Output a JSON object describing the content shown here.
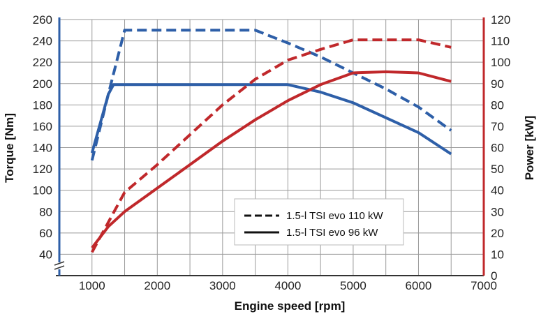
{
  "chart_data": {
    "type": "line",
    "xlabel": "Engine speed [rpm]",
    "ylabel_left": "Torque [Nm]",
    "ylabel_right": "Power [kW]",
    "x_ticks": [
      1000,
      2000,
      3000,
      4000,
      5000,
      6000,
      7000
    ],
    "xlim": [
      500,
      7000
    ],
    "y_left_ticks": [
      40,
      60,
      80,
      100,
      120,
      140,
      160,
      180,
      200,
      220,
      240,
      260
    ],
    "y_left_lim": [
      20,
      260
    ],
    "y_right_ticks": [
      0,
      10,
      20,
      30,
      40,
      50,
      60,
      70,
      80,
      90,
      100,
      110,
      120
    ],
    "y_right_lim": [
      0,
      120
    ],
    "grid": true,
    "left_axis_break": true,
    "colors": {
      "torque": "#2e5fa8",
      "power": "#c0282b",
      "grid": "#9a9a9a"
    },
    "legend": {
      "placement": "bottom-center",
      "entries": [
        {
          "label": "1.5-l TSI evo 110 kW",
          "style": "dashed"
        },
        {
          "label": "1.5-l TSI evo 96 kW",
          "style": "solid"
        }
      ]
    },
    "series": [
      {
        "quantity": "torque",
        "variant": "110 kW",
        "style": "dashed",
        "axis": "left",
        "points": [
          [
            1000,
            128
          ],
          [
            1250,
            190
          ],
          [
            1500,
            250
          ],
          [
            2000,
            250
          ],
          [
            3000,
            250
          ],
          [
            3500,
            250
          ],
          [
            4000,
            238
          ],
          [
            4500,
            225
          ],
          [
            5000,
            210
          ],
          [
            5500,
            195
          ],
          [
            6000,
            178
          ],
          [
            6500,
            156
          ]
        ]
      },
      {
        "quantity": "torque",
        "variant": "96 kW",
        "style": "solid",
        "axis": "left",
        "points": [
          [
            1000,
            135
          ],
          [
            1250,
            190
          ],
          [
            1330,
            199
          ],
          [
            2000,
            199
          ],
          [
            3000,
            199
          ],
          [
            4000,
            199
          ],
          [
            4500,
            192
          ],
          [
            5000,
            182
          ],
          [
            5500,
            168
          ],
          [
            6000,
            154
          ],
          [
            6500,
            134
          ]
        ]
      },
      {
        "quantity": "power",
        "variant": "110 kW",
        "style": "dashed",
        "axis": "right",
        "points": [
          [
            1000,
            11
          ],
          [
            1250,
            25
          ],
          [
            1500,
            39
          ],
          [
            2000,
            52
          ],
          [
            2500,
            66
          ],
          [
            3000,
            80
          ],
          [
            3500,
            92
          ],
          [
            4000,
            101
          ],
          [
            4500,
            106
          ],
          [
            5000,
            110.5
          ],
          [
            5500,
            110.5
          ],
          [
            6000,
            110.5
          ],
          [
            6500,
            107
          ]
        ]
      },
      {
        "quantity": "power",
        "variant": "96 kW",
        "style": "solid",
        "axis": "right",
        "points": [
          [
            1000,
            13
          ],
          [
            1250,
            23
          ],
          [
            1500,
            30
          ],
          [
            2000,
            41
          ],
          [
            2500,
            52
          ],
          [
            3000,
            63
          ],
          [
            3500,
            73
          ],
          [
            4000,
            82
          ],
          [
            4500,
            89.5
          ],
          [
            5000,
            95
          ],
          [
            5500,
            95.5
          ],
          [
            6000,
            95
          ],
          [
            6500,
            91
          ]
        ]
      }
    ]
  }
}
